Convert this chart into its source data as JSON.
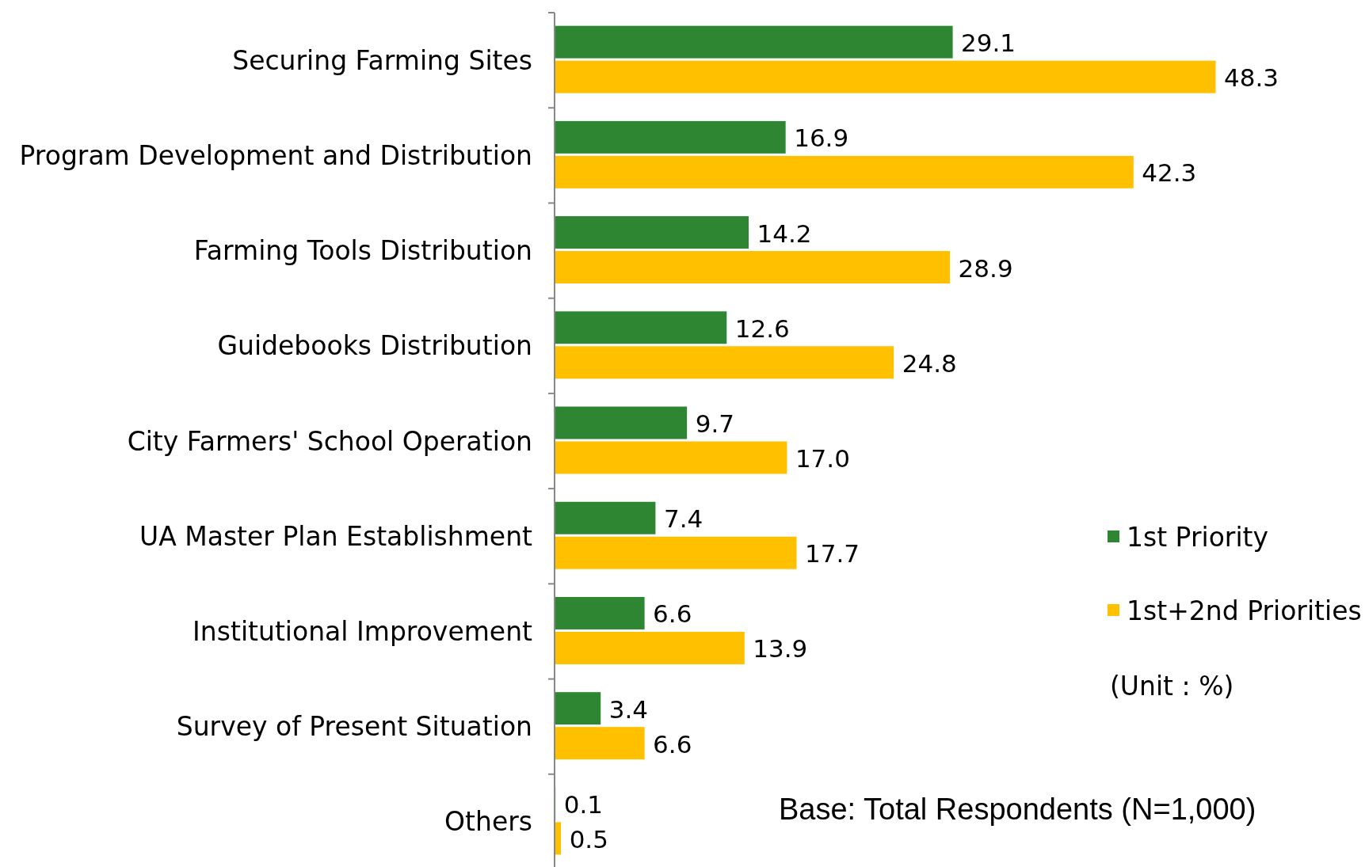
{
  "chart_data": {
    "type": "bar",
    "orientation": "horizontal",
    "categories": [
      "Securing Farming Sites",
      "Program Development and Distribution",
      "Farming Tools Distribution",
      "Guidebooks Distribution",
      "City Farmers' School Operation",
      "UA Master Plan Establishment",
      "Institutional Improvement",
      "Survey of Present Situation",
      "Others"
    ],
    "series": [
      {
        "name": "1st Priority",
        "color": "#2e8532",
        "values": [
          29.1,
          16.9,
          14.2,
          12.6,
          9.7,
          7.4,
          6.6,
          3.4,
          0.1
        ],
        "value_labels": [
          "29.1",
          "16.9",
          "14.2",
          "12.6",
          "9.7",
          "7.4",
          "6.6",
          "3.4",
          "0.1"
        ]
      },
      {
        "name": "1st+2nd Priorities",
        "color": "#ffc000",
        "values": [
          48.3,
          42.3,
          28.9,
          24.8,
          17.0,
          17.7,
          13.9,
          6.6,
          0.5
        ],
        "value_labels": [
          "48.3",
          "42.3",
          "28.9",
          "24.8",
          "17.0",
          "17.7",
          "13.9",
          "6.6",
          "0.5"
        ]
      }
    ],
    "tick_labels": "y",
    "legend": "right",
    "annotations": [
      "(Unit : %)",
      "Base: Total Respondents (N=1,000)"
    ]
  }
}
